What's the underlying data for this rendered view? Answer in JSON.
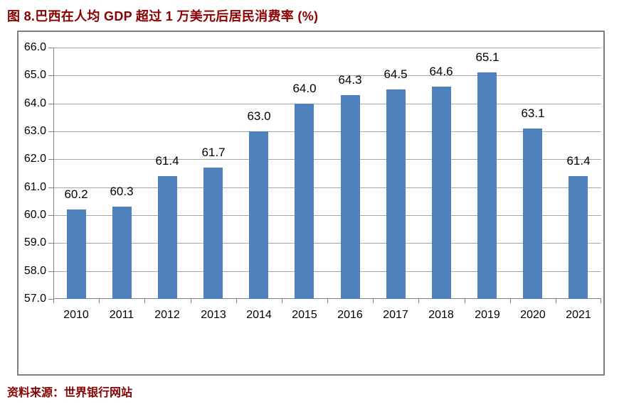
{
  "page": {
    "title": "图 8.巴西在人均 GDP 超过 1 万美元后居民消费率 (%)",
    "source": "资料来源：世界银行网站"
  },
  "colors": {
    "title_text": "#8B0000",
    "source_text": "#8B0000",
    "bar_fill": "#4F81BD",
    "gridline": "#A6A6A6",
    "axis": "#808080",
    "chart_border": "#808080",
    "label_text": "#000000"
  },
  "chart_data": {
    "type": "bar",
    "title": "图 8.巴西在人均 GDP 超过 1 万美元后居民消费率 (%)",
    "categories": [
      "2010",
      "2011",
      "2012",
      "2013",
      "2014",
      "2015",
      "2016",
      "2017",
      "2018",
      "2019",
      "2020",
      "2021"
    ],
    "values": [
      60.2,
      60.3,
      61.4,
      61.7,
      63.0,
      64.0,
      64.3,
      64.5,
      64.6,
      65.1,
      63.1,
      61.4
    ],
    "data_labels": [
      "60.2",
      "60.3",
      "61.4",
      "61.7",
      "63.0",
      "64.0",
      "64.3",
      "64.5",
      "64.6",
      "65.1",
      "63.1",
      "61.4"
    ],
    "xlabel": "",
    "ylabel": "",
    "ylim": [
      57.0,
      66.0
    ],
    "ytick_step": 1.0,
    "ytick_labels": [
      "66.0",
      "65.0",
      "64.0",
      "63.0",
      "62.0",
      "61.0",
      "60.0",
      "59.0",
      "58.0",
      "57.0"
    ],
    "grid": true,
    "legend": false,
    "source_note": "资料来源：世界银行网站"
  }
}
